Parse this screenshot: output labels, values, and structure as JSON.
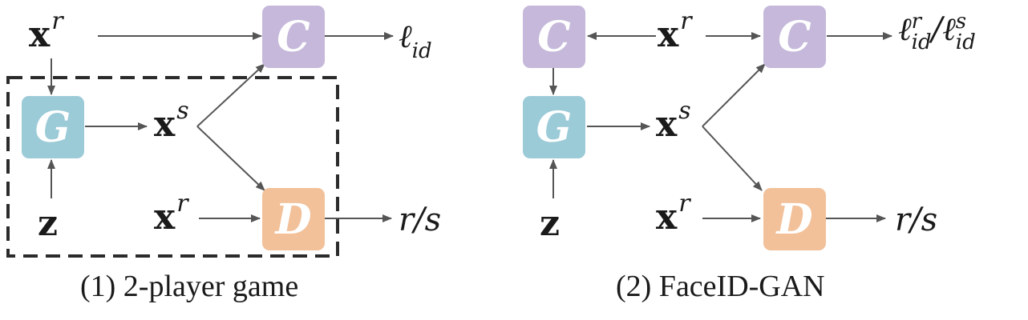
{
  "colors": {
    "c_box": "#c5b8da",
    "g_box": "#9ccbd8",
    "d_box": "#f2c19a"
  },
  "left": {
    "caption": "(1) 2-player game",
    "boxes": {
      "c": "C",
      "g": "G",
      "d": "D"
    },
    "vars": {
      "xr_top": {
        "base": "x",
        "sup": "r"
      },
      "xs": {
        "base": "x",
        "sup": "s"
      },
      "xr_bottom": {
        "base": "x",
        "sup": "r"
      },
      "z": "z"
    },
    "outputs": {
      "loss": {
        "base": "ℓ",
        "sub": "id"
      },
      "rs": "r/s"
    }
  },
  "right": {
    "caption": "(2) FaceID-GAN",
    "boxes": {
      "c_left": "C",
      "c_right": "C",
      "g": "G",
      "d": "D"
    },
    "vars": {
      "xr_top": {
        "base": "x",
        "sup": "r"
      },
      "xs": {
        "base": "x",
        "sup": "s"
      },
      "xr_bottom": {
        "base": "x",
        "sup": "r"
      },
      "z": "z"
    },
    "outputs": {
      "loss": {
        "base": "ℓ",
        "sup1": "r",
        "sub1": "id",
        "slash": "/",
        "sup2": "s",
        "sub2": "id"
      },
      "rs": "r/s"
    }
  }
}
